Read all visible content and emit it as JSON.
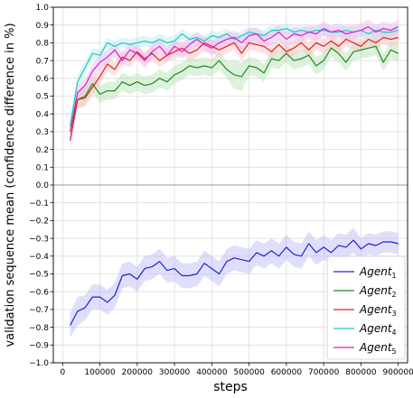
{
  "chart_data": {
    "type": "line",
    "xlabel": "steps",
    "ylabel": "validation sequence mean (confidence difference in %)",
    "xlim": [
      -25000,
      925000
    ],
    "ylim": [
      -1.0,
      1.0
    ],
    "xticks": [
      0,
      100000,
      200000,
      300000,
      400000,
      500000,
      600000,
      700000,
      800000,
      900000
    ],
    "xtick_labels": [
      "0",
      "100000",
      "200000",
      "300000",
      "400000",
      "500000",
      "600000",
      "700000",
      "800000",
      "900000"
    ],
    "yticks": [
      -1.0,
      -0.9,
      -0.8,
      -0.7,
      -0.6,
      -0.5,
      -0.4,
      -0.3,
      -0.2,
      -0.1,
      0.0,
      0.1,
      0.2,
      0.3,
      0.4,
      0.5,
      0.6,
      0.7,
      0.8,
      0.9,
      1.0
    ],
    "ytick_labels": [
      "−1.0",
      "−0.9",
      "−0.8",
      "−0.7",
      "−0.6",
      "−0.5",
      "−0.4",
      "−0.3",
      "−0.2",
      "−0.1",
      "0.0",
      "0.1",
      "0.2",
      "0.3",
      "0.4",
      "0.5",
      "0.6",
      "0.7",
      "0.8",
      "0.9",
      "1.0"
    ],
    "grid": true,
    "legend_position": "bottom-right",
    "x": [
      20000,
      40000,
      60000,
      80000,
      100000,
      120000,
      140000,
      160000,
      180000,
      200000,
      220000,
      240000,
      260000,
      280000,
      300000,
      320000,
      340000,
      360000,
      380000,
      400000,
      420000,
      440000,
      460000,
      480000,
      500000,
      520000,
      540000,
      560000,
      580000,
      600000,
      620000,
      640000,
      660000,
      680000,
      700000,
      720000,
      740000,
      760000,
      780000,
      800000,
      820000,
      840000,
      860000,
      880000,
      900000
    ],
    "series": [
      {
        "name": "Agent",
        "name_sub": "1",
        "color": "#2020e0",
        "band_color": "#b8b8f8",
        "values": [
          -0.79,
          -0.71,
          -0.69,
          -0.63,
          -0.63,
          -0.66,
          -0.62,
          -0.51,
          -0.5,
          -0.53,
          -0.47,
          -0.46,
          -0.43,
          -0.48,
          -0.47,
          -0.51,
          -0.51,
          -0.5,
          -0.44,
          -0.47,
          -0.5,
          -0.43,
          -0.41,
          -0.42,
          -0.43,
          -0.38,
          -0.4,
          -0.37,
          -0.4,
          -0.35,
          -0.39,
          -0.4,
          -0.33,
          -0.38,
          -0.35,
          -0.38,
          -0.34,
          -0.35,
          -0.31,
          -0.36,
          -0.33,
          -0.34,
          -0.32,
          -0.32,
          -0.33
        ],
        "band": [
          0.07,
          0.08,
          0.07,
          0.07,
          0.07,
          0.07,
          0.07,
          0.07,
          0.07,
          0.07,
          0.07,
          0.07,
          0.07,
          0.07,
          0.07,
          0.07,
          0.07,
          0.07,
          0.07,
          0.07,
          0.07,
          0.07,
          0.07,
          0.07,
          0.07,
          0.07,
          0.07,
          0.07,
          0.07,
          0.07,
          0.07,
          0.07,
          0.07,
          0.07,
          0.07,
          0.07,
          0.07,
          0.07,
          0.07,
          0.06,
          0.06,
          0.06,
          0.06,
          0.06,
          0.06
        ]
      },
      {
        "name": "Agent",
        "name_sub": "2",
        "color": "#1e8c1e",
        "band_color": "#b4e0b4",
        "values": [
          0.3,
          0.48,
          0.5,
          0.57,
          0.51,
          0.53,
          0.53,
          0.58,
          0.56,
          0.58,
          0.56,
          0.57,
          0.6,
          0.58,
          0.62,
          0.64,
          0.67,
          0.66,
          0.67,
          0.66,
          0.7,
          0.65,
          0.62,
          0.61,
          0.67,
          0.66,
          0.63,
          0.71,
          0.7,
          0.74,
          0.7,
          0.71,
          0.73,
          0.67,
          0.7,
          0.77,
          0.74,
          0.69,
          0.75,
          0.76,
          0.77,
          0.78,
          0.69,
          0.76,
          0.74
        ],
        "band": [
          0.06,
          0.05,
          0.05,
          0.05,
          0.05,
          0.05,
          0.05,
          0.05,
          0.05,
          0.05,
          0.05,
          0.05,
          0.05,
          0.05,
          0.05,
          0.05,
          0.05,
          0.05,
          0.05,
          0.05,
          0.05,
          0.05,
          0.08,
          0.08,
          0.05,
          0.05,
          0.05,
          0.05,
          0.05,
          0.05,
          0.05,
          0.05,
          0.05,
          0.05,
          0.05,
          0.05,
          0.05,
          0.05,
          0.05,
          0.05,
          0.05,
          0.05,
          0.05,
          0.05,
          0.05
        ]
      },
      {
        "name": "Agent",
        "name_sub": "3",
        "color": "#e02020",
        "band_color": "#f8c0c0",
        "values": [
          0.25,
          0.48,
          0.49,
          0.55,
          0.61,
          0.68,
          0.65,
          0.72,
          0.7,
          0.75,
          0.71,
          0.74,
          0.7,
          0.73,
          0.75,
          0.77,
          0.74,
          0.76,
          0.8,
          0.78,
          0.76,
          0.78,
          0.8,
          0.74,
          0.8,
          0.79,
          0.78,
          0.75,
          0.79,
          0.75,
          0.77,
          0.8,
          0.76,
          0.8,
          0.78,
          0.81,
          0.78,
          0.82,
          0.8,
          0.78,
          0.82,
          0.8,
          0.83,
          0.82,
          0.83
        ],
        "band": [
          0.06,
          0.05,
          0.05,
          0.05,
          0.04,
          0.04,
          0.04,
          0.04,
          0.04,
          0.04,
          0.04,
          0.04,
          0.04,
          0.04,
          0.04,
          0.04,
          0.04,
          0.04,
          0.04,
          0.04,
          0.04,
          0.04,
          0.04,
          0.04,
          0.04,
          0.04,
          0.04,
          0.04,
          0.04,
          0.04,
          0.04,
          0.04,
          0.04,
          0.04,
          0.04,
          0.04,
          0.04,
          0.04,
          0.04,
          0.04,
          0.04,
          0.04,
          0.04,
          0.04,
          0.04
        ]
      },
      {
        "name": "Agent",
        "name_sub": "4",
        "color": "#20c8c8",
        "band_color": "#b8ecec",
        "values": [
          0.33,
          0.58,
          0.66,
          0.74,
          0.73,
          0.8,
          0.78,
          0.8,
          0.79,
          0.8,
          0.81,
          0.8,
          0.82,
          0.8,
          0.81,
          0.85,
          0.82,
          0.83,
          0.81,
          0.84,
          0.83,
          0.85,
          0.82,
          0.84,
          0.86,
          0.85,
          0.84,
          0.87,
          0.87,
          0.88,
          0.86,
          0.87,
          0.86,
          0.87,
          0.87,
          0.86,
          0.86,
          0.87,
          0.86,
          0.87,
          0.85,
          0.87,
          0.86,
          0.86,
          0.87
        ],
        "band": [
          0.05,
          0.04,
          0.04,
          0.03,
          0.03,
          0.03,
          0.03,
          0.03,
          0.03,
          0.03,
          0.03,
          0.03,
          0.03,
          0.03,
          0.03,
          0.03,
          0.03,
          0.03,
          0.03,
          0.03,
          0.03,
          0.03,
          0.03,
          0.03,
          0.03,
          0.03,
          0.03,
          0.03,
          0.03,
          0.03,
          0.03,
          0.03,
          0.03,
          0.03,
          0.03,
          0.03,
          0.03,
          0.03,
          0.03,
          0.03,
          0.03,
          0.03,
          0.03,
          0.03,
          0.03
        ]
      },
      {
        "name": "Agent",
        "name_sub": "5",
        "color": "#d020d0",
        "band_color": "#f0b8f0",
        "values": [
          0.3,
          0.52,
          0.56,
          0.64,
          0.69,
          0.72,
          0.76,
          0.7,
          0.76,
          0.74,
          0.7,
          0.75,
          0.78,
          0.73,
          0.78,
          0.75,
          0.79,
          0.82,
          0.79,
          0.77,
          0.8,
          0.82,
          0.83,
          0.8,
          0.84,
          0.85,
          0.81,
          0.83,
          0.86,
          0.82,
          0.85,
          0.84,
          0.86,
          0.85,
          0.88,
          0.86,
          0.87,
          0.85,
          0.86,
          0.87,
          0.89,
          0.86,
          0.88,
          0.87,
          0.89
        ],
        "band": [
          0.06,
          0.04,
          0.04,
          0.04,
          0.04,
          0.04,
          0.04,
          0.04,
          0.04,
          0.04,
          0.04,
          0.04,
          0.04,
          0.04,
          0.04,
          0.04,
          0.04,
          0.04,
          0.04,
          0.04,
          0.04,
          0.04,
          0.04,
          0.04,
          0.04,
          0.04,
          0.04,
          0.04,
          0.04,
          0.04,
          0.04,
          0.04,
          0.04,
          0.04,
          0.04,
          0.04,
          0.04,
          0.04,
          0.04,
          0.04,
          0.04,
          0.04,
          0.04,
          0.04,
          0.04
        ]
      }
    ]
  }
}
